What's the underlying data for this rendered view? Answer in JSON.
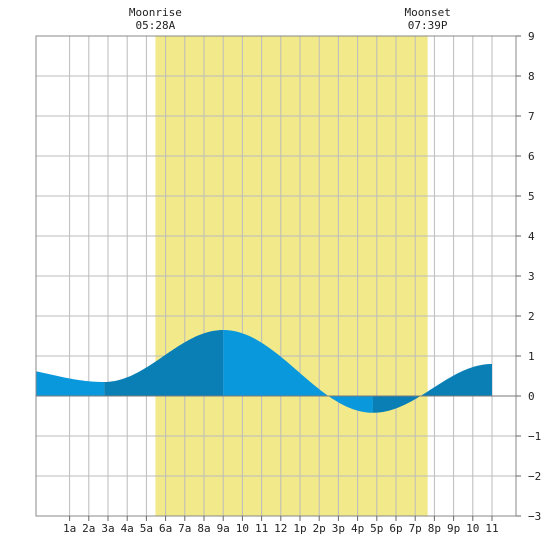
{
  "chart_data": {
    "type": "area",
    "title": "",
    "xlabel": "",
    "ylabel": "",
    "x_range_hours": [
      -0.75,
      24.25
    ],
    "ylim": [
      -3,
      9
    ],
    "y_ticks": [
      -3,
      -2,
      -1,
      0,
      1,
      2,
      3,
      4,
      5,
      6,
      7,
      8,
      9
    ],
    "y_tick_labels": [
      "−3",
      "−2",
      "−1",
      "0",
      "1",
      "2",
      "3",
      "4",
      "5",
      "6",
      "7",
      "8",
      "9"
    ],
    "x_ticks_hours": [
      1,
      2,
      3,
      4,
      5,
      6,
      7,
      8,
      9,
      10,
      11,
      12,
      13,
      14,
      15,
      16,
      17,
      18,
      19,
      20,
      21,
      22,
      23
    ],
    "x_tick_labels": [
      "1a",
      "2a",
      "3a",
      "4a",
      "5a",
      "6a",
      "7a",
      "8a",
      "9a",
      "10",
      "11",
      "12",
      "1p",
      "2p",
      "3p",
      "4p",
      "5p",
      "6p",
      "7p",
      "8p",
      "9p",
      "10",
      "11"
    ],
    "grid": true,
    "moon": {
      "rise_label": "Moonrise",
      "rise_time": "05:28A",
      "rise_hour": 5.47,
      "set_label": "Moonset",
      "set_time": "07:39P",
      "set_hour": 19.65,
      "color": "#f2ea8a"
    },
    "tide_extremes": [
      {
        "hour": -3.0,
        "value": 0.75,
        "type": "high"
      },
      {
        "hour": 2.8,
        "value": 0.35,
        "type": "low"
      },
      {
        "hour": 9.0,
        "value": 1.65,
        "type": "high"
      },
      {
        "hour": 16.8,
        "value": -0.42,
        "type": "low"
      },
      {
        "hour": 23.0,
        "value": 0.8,
        "type": "high"
      }
    ],
    "series": [
      {
        "values": [
          [
            0,
            0.6
          ],
          [
            1,
            0.45
          ],
          [
            2,
            0.37
          ],
          [
            3,
            0.36
          ],
          [
            4,
            0.48
          ],
          [
            5,
            0.75
          ],
          [
            6,
            1.05
          ],
          [
            7,
            1.35
          ],
          [
            8,
            1.58
          ],
          [
            9,
            1.65
          ],
          [
            10,
            1.55
          ],
          [
            11,
            1.25
          ],
          [
            12,
            0.85
          ],
          [
            13,
            0.45
          ],
          [
            14,
            0.05
          ],
          [
            15,
            -0.25
          ],
          [
            16,
            -0.4
          ],
          [
            17,
            -0.42
          ],
          [
            18,
            -0.25
          ],
          [
            19,
            0.0
          ],
          [
            20,
            0.3
          ],
          [
            21,
            0.55
          ],
          [
            22,
            0.73
          ],
          [
            23,
            0.8
          ],
          [
            24,
            0.75
          ]
        ]
      }
    ],
    "colors": {
      "tide_light": "#0a98dc",
      "tide_dark": "#0a7fb5",
      "grid": "#bbbbbb",
      "zero_line": "#7a7a7a"
    }
  }
}
